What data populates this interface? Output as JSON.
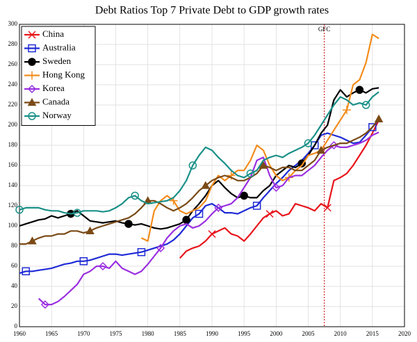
{
  "chart_data": {
    "type": "line",
    "title": "Debt Ratios Top 7 Private Debt to GDP growth rates",
    "x": [
      1960,
      1961,
      1962,
      1963,
      1964,
      1965,
      1966,
      1967,
      1968,
      1969,
      1970,
      1971,
      1972,
      1973,
      1974,
      1975,
      1976,
      1977,
      1978,
      1979,
      1980,
      1981,
      1982,
      1983,
      1984,
      1985,
      1986,
      1987,
      1988,
      1989,
      1990,
      1991,
      1992,
      1993,
      1994,
      1995,
      1996,
      1997,
      1998,
      1999,
      2000,
      2001,
      2002,
      2003,
      2004,
      2005,
      2006,
      2007,
      2008,
      2009,
      2010,
      2011,
      2012,
      2013,
      2014,
      2015,
      2016
    ],
    "series": [
      {
        "name": "China",
        "color": "#e8141b",
        "marker": "x",
        "values": [
          null,
          null,
          null,
          null,
          null,
          null,
          null,
          null,
          null,
          null,
          null,
          null,
          null,
          null,
          null,
          null,
          null,
          null,
          null,
          null,
          null,
          null,
          null,
          null,
          null,
          68,
          75,
          78,
          80,
          85,
          92,
          95,
          98,
          92,
          90,
          85,
          92,
          100,
          108,
          112,
          115,
          110,
          112,
          122,
          120,
          118,
          115,
          122,
          118,
          145,
          148,
          152,
          160,
          170,
          180,
          192,
          205
        ]
      },
      {
        "name": "Australia",
        "color": "#1f2bd6",
        "marker": "square",
        "values": [
          53,
          55,
          55,
          56,
          57,
          58,
          60,
          62,
          63,
          65,
          65,
          66,
          68,
          70,
          72,
          72,
          71,
          72,
          73,
          74,
          76,
          78,
          80,
          82,
          86,
          92,
          100,
          108,
          112,
          120,
          122,
          118,
          113,
          113,
          112,
          115,
          118,
          120,
          128,
          135,
          142,
          148,
          155,
          160,
          165,
          172,
          180,
          190,
          192,
          190,
          188,
          185,
          182,
          183,
          190,
          198,
          205
        ]
      },
      {
        "name": "Sweden",
        "color": "#000000",
        "marker": "dot",
        "values": [
          100,
          102,
          104,
          106,
          107,
          110,
          108,
          110,
          112,
          115,
          110,
          105,
          104,
          103,
          104,
          105,
          103,
          102,
          101,
          102,
          100,
          98,
          97,
          98,
          100,
          102,
          106,
          115,
          122,
          130,
          140,
          145,
          138,
          132,
          128,
          130,
          128,
          128,
          135,
          140,
          150,
          155,
          160,
          158,
          162,
          170,
          180,
          192,
          200,
          225,
          235,
          228,
          232,
          235,
          232,
          236,
          237
        ]
      },
      {
        "name": "Hong Kong",
        "color": "#f28c1c",
        "marker": "plus",
        "values": [
          null,
          null,
          null,
          null,
          null,
          null,
          null,
          null,
          null,
          null,
          null,
          null,
          null,
          null,
          null,
          null,
          null,
          null,
          null,
          88,
          85,
          115,
          125,
          130,
          125,
          115,
          112,
          115,
          118,
          125,
          140,
          150,
          145,
          150,
          155,
          155,
          165,
          180,
          175,
          160,
          150,
          145,
          148,
          155,
          160,
          170,
          172,
          175,
          185,
          195,
          205,
          215,
          240,
          245,
          262,
          290,
          286
        ]
      },
      {
        "name": "Korea",
        "color": "#9b2fe0",
        "marker": "diamond",
        "values": [
          null,
          null,
          null,
          28,
          22,
          22,
          25,
          30,
          36,
          42,
          52,
          55,
          60,
          60,
          58,
          65,
          58,
          55,
          52,
          55,
          62,
          70,
          78,
          88,
          95,
          100,
          102,
          98,
          100,
          105,
          112,
          118,
          120,
          122,
          128,
          138,
          148,
          165,
          168,
          150,
          138,
          140,
          148,
          150,
          150,
          155,
          160,
          168,
          175,
          180,
          178,
          178,
          180,
          182,
          185,
          190,
          193
        ]
      },
      {
        "name": "Canada",
        "color": "#7a4a16",
        "marker": "triangle",
        "values": [
          82,
          82,
          85,
          88,
          90,
          90,
          92,
          92,
          95,
          95,
          93,
          95,
          98,
          100,
          102,
          104,
          106,
          108,
          112,
          118,
          125,
          125,
          122,
          118,
          115,
          118,
          122,
          128,
          135,
          140,
          145,
          148,
          150,
          148,
          145,
          145,
          148,
          152,
          160,
          158,
          155,
          158,
          158,
          155,
          155,
          160,
          165,
          175,
          178,
          180,
          182,
          182,
          185,
          188,
          192,
          198,
          206
        ]
      },
      {
        "name": "Norway",
        "color": "#1a9088",
        "marker": "circle",
        "values": [
          116,
          118,
          118,
          118,
          116,
          115,
          115,
          113,
          112,
          113,
          115,
          115,
          115,
          114,
          115,
          118,
          122,
          128,
          130,
          125,
          122,
          123,
          124,
          125,
          128,
          135,
          145,
          160,
          170,
          178,
          175,
          168,
          162,
          155,
          150,
          148,
          152,
          155,
          165,
          168,
          170,
          168,
          172,
          175,
          178,
          182,
          190,
          200,
          210,
          220,
          228,
          225,
          220,
          222,
          220,
          228,
          233
        ]
      }
    ],
    "xlim": [
      1960,
      2020
    ],
    "xticks": [
      1960,
      1965,
      1970,
      1975,
      1980,
      1985,
      1990,
      1995,
      2000,
      2005,
      2010,
      2015,
      2020
    ],
    "ylim": [
      0,
      300
    ],
    "yticks": [
      0,
      20,
      40,
      60,
      80,
      100,
      120,
      140,
      160,
      180,
      200,
      220,
      240,
      260,
      280,
      300
    ],
    "grid": true,
    "legend": "top-left",
    "annotations": [
      {
        "text": "GFC",
        "x": 2007.5,
        "color": "#cc0000"
      }
    ]
  }
}
